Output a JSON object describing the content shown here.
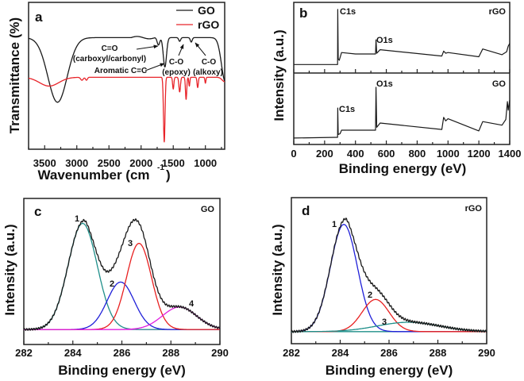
{
  "chart_data": [
    {
      "panel": "a",
      "type": "line",
      "xlabel": "Wavenumber (cm",
      "xlabel_sup": "-1",
      "xlabel_close": ")",
      "ylabel": "Transmittance (%)",
      "xlim": [
        3750,
        700
      ],
      "ylim": [
        0,
        100
      ],
      "x_ticks": [
        "3500",
        "3000",
        "2500",
        "2000",
        "1500",
        "1000"
      ],
      "x_tick_values": [
        3500,
        3000,
        2500,
        2000,
        1500,
        1000
      ],
      "y_ticks_shown": false,
      "legend": {
        "placement": "top-right",
        "entries": [
          "GO",
          "rGO"
        ]
      },
      "series": [
        {
          "name": "GO",
          "color": "#1a1a1a",
          "baseline": 76,
          "bands": [
            [
              3300,
              44,
              150
            ],
            [
              1730,
              5,
              20
            ],
            [
              1630,
              20,
              25
            ],
            [
              1400,
              2.5,
              15
            ],
            [
              1220,
              3,
              15
            ],
            [
              690,
              30,
              60
            ]
          ]
        },
        {
          "name": "rGO",
          "color": "#e8242a",
          "baseline": 49,
          "bands": [
            [
              3430,
              6,
              150
            ],
            [
              2920,
              2,
              20
            ],
            [
              2850,
              2,
              15
            ],
            [
              1640,
              44,
              12
            ],
            [
              1500,
              8,
              10
            ],
            [
              1400,
              10,
              12
            ],
            [
              1300,
              15,
              10
            ],
            [
              1250,
              6,
              8
            ],
            [
              1120,
              7,
              10
            ],
            [
              1000,
              4,
              8
            ],
            [
              700,
              3,
              40
            ]
          ]
        }
      ],
      "annotations": [
        {
          "lines": [
            "C=O",
            "(carboxyl/carbonyl)"
          ]
        },
        {
          "lines": [
            "Aromatic C=C"
          ]
        },
        {
          "lines": [
            "C-O",
            "(epoxy)"
          ]
        },
        {
          "lines": [
            "C-O",
            "(alkoxy)"
          ]
        }
      ]
    },
    {
      "panel": "b",
      "type": "line",
      "xlabel": "Binding energy (eV)",
      "ylabel": "Intensity (a.u.)",
      "xlim": [
        0,
        1400
      ],
      "x_ticks": [
        "0",
        "200",
        "400",
        "600",
        "800",
        "1000",
        "1200",
        "1400"
      ],
      "x_tick_values": [
        0,
        200,
        400,
        600,
        800,
        1000,
        1200,
        1400
      ],
      "y_ticks_shown": false,
      "series": [
        {
          "name": "rGO",
          "color": "#1a1a1a",
          "points": [
            [
              0,
              12
            ],
            [
              280,
              12
            ],
            [
              284,
              12
            ],
            [
              285,
              90
            ],
            [
              288,
              20
            ],
            [
              295,
              18
            ],
            [
              310,
              29
            ],
            [
              400,
              27
            ],
            [
              530,
              27
            ],
            [
              533,
              47
            ],
            [
              538,
              28
            ],
            [
              560,
              33
            ],
            [
              960,
              24
            ],
            [
              972,
              31
            ],
            [
              985,
              28
            ],
            [
              1000,
              29
            ],
            [
              1200,
              23
            ],
            [
              1225,
              34
            ],
            [
              1350,
              26
            ],
            [
              1380,
              30
            ],
            [
              1390,
              38
            ],
            [
              1400,
              42
            ]
          ],
          "peak_labels": [
            "C1s",
            "O1s"
          ]
        },
        {
          "name": "GO",
          "color": "#1a1a1a",
          "points": [
            [
              0,
              9
            ],
            [
              280,
              10
            ],
            [
              284,
              10
            ],
            [
              285,
              51
            ],
            [
              288,
              14
            ],
            [
              300,
              15
            ],
            [
              310,
              20
            ],
            [
              530,
              20
            ],
            [
              533,
              80
            ],
            [
              538,
              24
            ],
            [
              560,
              30
            ],
            [
              960,
              21
            ],
            [
              972,
              38
            ],
            [
              985,
              33
            ],
            [
              1000,
              36
            ],
            [
              1200,
              19
            ],
            [
              1225,
              32
            ],
            [
              1350,
              27
            ],
            [
              1375,
              35
            ],
            [
              1385,
              60
            ],
            [
              1390,
              48
            ],
            [
              1400,
              62
            ]
          ],
          "peak_labels": [
            "O1s",
            "C1s"
          ]
        }
      ]
    },
    {
      "panel": "c",
      "sample": "GO",
      "type": "line",
      "xlabel": "Binding energy (eV)",
      "ylabel": "Intensity (a.u.)",
      "xlim": [
        282,
        290
      ],
      "ylim": [
        -0.12,
        1.05
      ],
      "x_ticks": [
        "282",
        "284",
        "286",
        "288",
        "290"
      ],
      "x_tick_values": [
        282,
        284,
        286,
        288,
        290
      ],
      "y_ticks_shown": false,
      "envelope_color": "#1a1a1a",
      "components": [
        {
          "label": "1",
          "center": 284.4,
          "height": 0.85,
          "fwhm": 1.4,
          "color": "#1f8f8a"
        },
        {
          "label": "2",
          "center": 285.95,
          "height": 0.38,
          "fwhm": 1.3,
          "color": "#2020d8"
        },
        {
          "label": "3",
          "center": 286.7,
          "height": 0.69,
          "fwhm": 1.2,
          "color": "#e82020"
        },
        {
          "label": "4",
          "center": 288.35,
          "height": 0.18,
          "fwhm": 1.65,
          "color": "#e020e0"
        }
      ]
    },
    {
      "panel": "d",
      "sample": "rGO",
      "type": "line",
      "xlabel": "Binding energy (eV)",
      "ylabel": "Intensity (a.u.)",
      "xlim": [
        282,
        290
      ],
      "ylim": [
        -0.09,
        1.0
      ],
      "x_ticks": [
        "282",
        "284",
        "286",
        "288",
        "290"
      ],
      "x_tick_values": [
        282,
        284,
        286,
        288,
        290
      ],
      "y_ticks_shown": false,
      "envelope_color": "#1a1a1a",
      "components": [
        {
          "label": "1",
          "center": 284.15,
          "height": 0.8,
          "fwhm": 1.3,
          "color": "#2020d8"
        },
        {
          "label": "2",
          "center": 285.45,
          "height": 0.24,
          "fwhm": 1.3,
          "color": "#e82020"
        },
        {
          "label": "3",
          "center": 286.8,
          "height": 0.07,
          "fwhm": 3.0,
          "color": "#1f8f8a"
        }
      ]
    }
  ]
}
